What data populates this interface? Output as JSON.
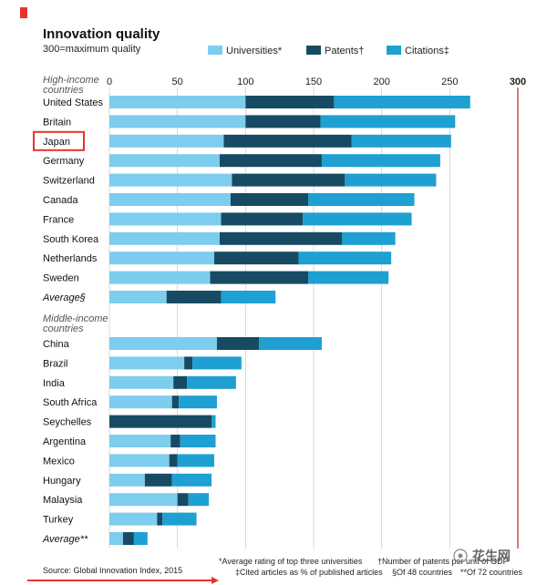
{
  "chart_data": {
    "type": "bar",
    "orientation": "horizontal",
    "stacked": true,
    "title": "Innovation quality",
    "subtitle": "300=maximum quality",
    "xlim": [
      0,
      300
    ],
    "xticks": [
      "0",
      "50",
      "100",
      "150",
      "200",
      "250",
      "300"
    ],
    "grid": true,
    "legend_position": "top",
    "series": [
      {
        "name": "Universities*",
        "color": "#7dcdee"
      },
      {
        "name": "Patents†",
        "color": "#174b63"
      },
      {
        "name": "Citations‡",
        "color": "#1ea0d2"
      }
    ],
    "groups": [
      {
        "label": "High-income countries",
        "rows": [
          {
            "label": "United States",
            "values": [
              100,
              65,
              100
            ],
            "highlight": false,
            "italic": false
          },
          {
            "label": "Britain",
            "values": [
              100,
              55,
              99
            ],
            "highlight": false,
            "italic": false
          },
          {
            "label": "Japan",
            "values": [
              84,
              94,
              73
            ],
            "highlight": true,
            "italic": false
          },
          {
            "label": "Germany",
            "values": [
              81,
              75,
              87
            ],
            "highlight": false,
            "italic": false
          },
          {
            "label": "Switzerland",
            "values": [
              90,
              83,
              67
            ],
            "highlight": false,
            "italic": false
          },
          {
            "label": "Canada",
            "values": [
              89,
              57,
              78
            ],
            "highlight": false,
            "italic": false
          },
          {
            "label": "France",
            "values": [
              82,
              60,
              80
            ],
            "highlight": false,
            "italic": false
          },
          {
            "label": "South Korea",
            "values": [
              81,
              90,
              39
            ],
            "highlight": false,
            "italic": false
          },
          {
            "label": "Netherlands",
            "values": [
              77,
              62,
              68
            ],
            "highlight": false,
            "italic": false
          },
          {
            "label": "Sweden",
            "values": [
              74,
              72,
              59
            ],
            "highlight": false,
            "italic": false
          },
          {
            "label": "Average§",
            "values": [
              42,
              40,
              40
            ],
            "highlight": false,
            "italic": true
          }
        ]
      },
      {
        "label": "Middle-income countries",
        "rows": [
          {
            "label": "China",
            "values": [
              79,
              31,
              46
            ],
            "highlight": false,
            "italic": false
          },
          {
            "label": "Brazil",
            "values": [
              55,
              6,
              36
            ],
            "highlight": false,
            "italic": false
          },
          {
            "label": "India",
            "values": [
              47,
              10,
              36
            ],
            "highlight": false,
            "italic": false
          },
          {
            "label": "South Africa",
            "values": [
              46,
              5,
              28
            ],
            "highlight": false,
            "italic": false
          },
          {
            "label": "Seychelles",
            "values": [
              0,
              75,
              3
            ],
            "highlight": false,
            "italic": false
          },
          {
            "label": "Argentina",
            "values": [
              45,
              7,
              26
            ],
            "highlight": false,
            "italic": false
          },
          {
            "label": "Mexico",
            "values": [
              44,
              6,
              27
            ],
            "highlight": false,
            "italic": false
          },
          {
            "label": "Hungary",
            "values": [
              26,
              20,
              29
            ],
            "highlight": false,
            "italic": false
          },
          {
            "label": "Malaysia",
            "values": [
              50,
              8,
              15
            ],
            "highlight": false,
            "italic": false
          },
          {
            "label": "Turkey",
            "values": [
              35,
              4,
              25
            ],
            "highlight": false,
            "italic": false
          },
          {
            "label": "Average**",
            "values": [
              10,
              8,
              10
            ],
            "highlight": false,
            "italic": true
          }
        ]
      }
    ],
    "footnotes": [
      "*Average rating of top three universities",
      "†Number of patents per unit of GDP",
      "‡Cited articles as % of published articles",
      "§Of 48 countries",
      "**Of 72 countries"
    ],
    "source": "Source: Global Innovation Index, 2015"
  },
  "watermark": "花生网",
  "colors": {
    "accent_red": "#e8322b",
    "gridline": "#cfcfcf",
    "max_line": "#c0392b"
  }
}
